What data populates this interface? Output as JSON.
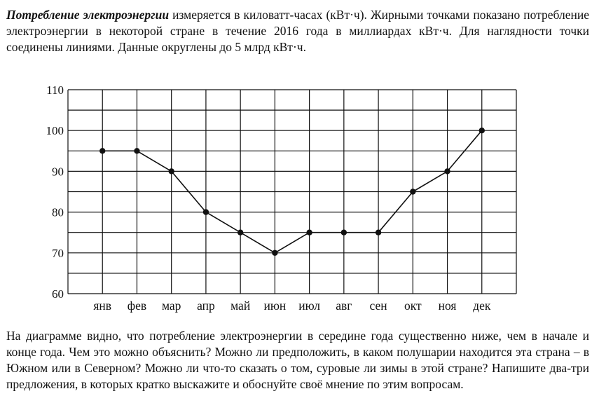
{
  "intro": {
    "term": "Потребление электроэнергии",
    "text": " измеряется в киловатт-часах (кВт·ч). Жирными точками показано потребление электроэнергии в некоторой стране в течение 2016 года в миллиардах кВт·ч. Для наглядности точки соединены линиями. Данные округлены до 5 млрд кВт·ч."
  },
  "question": "На диаграмме видно, что потребление электроэнергии в середине года существенно ниже, чем в начале и конце года. Чем это можно объяснить? Можно ли предположить, в каком полушарии находится эта страна – в Южном или в Северном? Можно ли что-то сказать о том, суровые ли зимы в этой стране? Напишите два-три предложения, в которых кратко выскажите и обоснуйте своё мнение по этим вопросам.",
  "chart_data": {
    "type": "line",
    "categories": [
      "янв",
      "фев",
      "мар",
      "апр",
      "май",
      "июн",
      "июл",
      "авг",
      "сен",
      "окт",
      "ноя",
      "дек"
    ],
    "values": [
      95,
      95,
      90,
      80,
      75,
      70,
      75,
      75,
      75,
      85,
      90,
      100
    ],
    "y_ticks": [
      60,
      70,
      80,
      90,
      100,
      110
    ],
    "ylim": [
      60,
      110
    ],
    "y_minor_step": 5,
    "grid": true,
    "title": "",
    "xlabel": "",
    "ylabel": "",
    "line_color": "#111111",
    "marker_color": "#111111"
  }
}
